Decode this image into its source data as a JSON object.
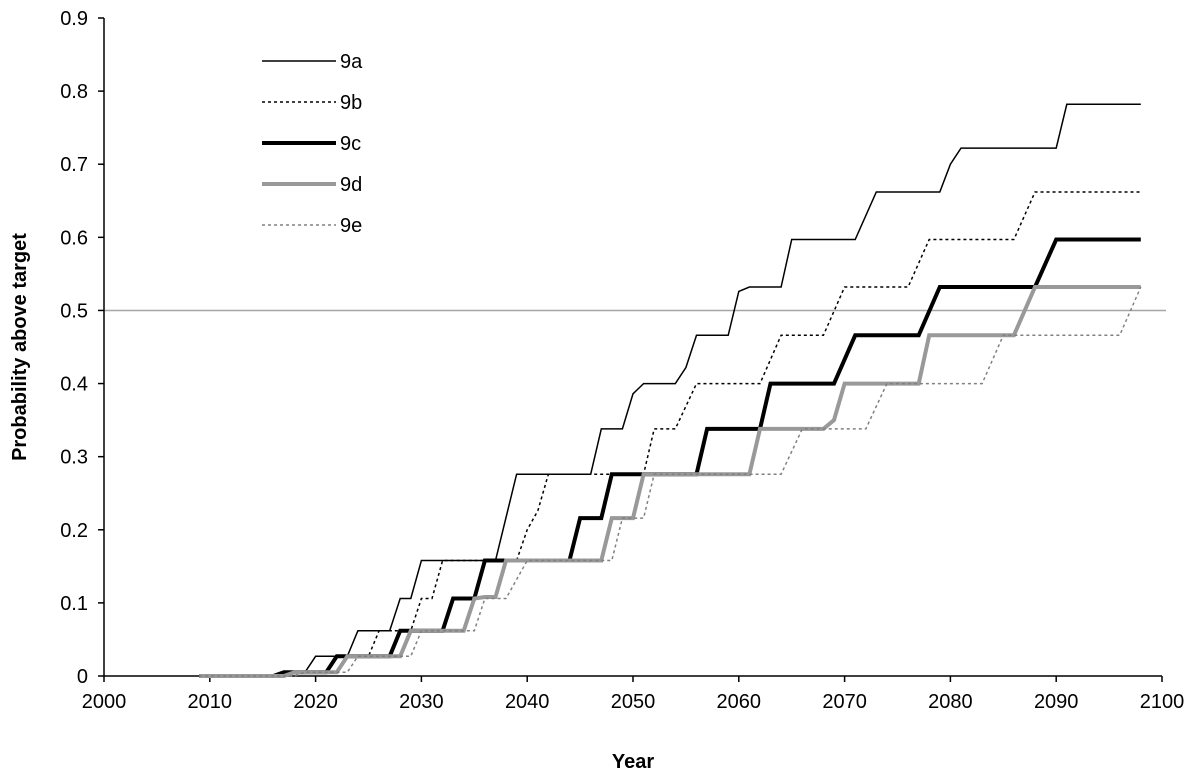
{
  "chart_data": {
    "type": "line",
    "title": "",
    "xlabel": "Year",
    "ylabel": "Probability above target",
    "xlim": [
      2000,
      2100
    ],
    "ylim": [
      0,
      0.9
    ],
    "xticks": [
      2000,
      2010,
      2020,
      2030,
      2040,
      2050,
      2060,
      2070,
      2080,
      2090,
      2100
    ],
    "yticks": [
      0,
      0.1,
      0.2,
      0.3,
      0.4,
      0.5,
      0.6,
      0.7,
      0.8,
      0.9
    ],
    "ytick_labels": [
      "0",
      "0.1",
      "0.2",
      "0.3",
      "0.4",
      "0.5",
      "0.6",
      "0.7",
      "0.8",
      "0.9"
    ],
    "xtick_labels": [
      "2000",
      "2010",
      "2020",
      "2030",
      "2040",
      "2050",
      "2060",
      "2070",
      "2080",
      "2090",
      "2100"
    ],
    "grid": false,
    "legend_position": "top-left",
    "reference_lines": [
      {
        "axis": "y",
        "value": 0.5,
        "color": "#a6a6a6"
      }
    ],
    "series": [
      {
        "name": "9a",
        "color": "#000000",
        "style": "solid-thin",
        "points": [
          [
            2009,
            0
          ],
          [
            2016,
            0
          ],
          [
            2017,
            0.005
          ],
          [
            2019,
            0.005
          ],
          [
            2020,
            0.027
          ],
          [
            2023,
            0.027
          ],
          [
            2024,
            0.062
          ],
          [
            2027,
            0.062
          ],
          [
            2028,
            0.106
          ],
          [
            2029,
            0.106
          ],
          [
            2030,
            0.158
          ],
          [
            2037,
            0.158
          ],
          [
            2039,
            0.276
          ],
          [
            2046,
            0.276
          ],
          [
            2047,
            0.338
          ],
          [
            2049,
            0.338
          ],
          [
            2050,
            0.386
          ],
          [
            2051,
            0.4
          ],
          [
            2054,
            0.4
          ],
          [
            2055,
            0.422
          ],
          [
            2056,
            0.466
          ],
          [
            2059,
            0.466
          ],
          [
            2060,
            0.526
          ],
          [
            2061,
            0.532
          ],
          [
            2064,
            0.532
          ],
          [
            2065,
            0.597
          ],
          [
            2071,
            0.597
          ],
          [
            2073,
            0.662
          ],
          [
            2079,
            0.662
          ],
          [
            2080,
            0.7
          ],
          [
            2081,
            0.722
          ],
          [
            2090,
            0.722
          ],
          [
            2091,
            0.782
          ],
          [
            2098,
            0.782
          ]
        ]
      },
      {
        "name": "9b",
        "color": "#000000",
        "style": "dotted-thin",
        "points": [
          [
            2009,
            0
          ],
          [
            2017,
            0
          ],
          [
            2018,
            0.005
          ],
          [
            2021,
            0.005
          ],
          [
            2022,
            0.027
          ],
          [
            2025,
            0.027
          ],
          [
            2026,
            0.062
          ],
          [
            2029,
            0.062
          ],
          [
            2030,
            0.106
          ],
          [
            2031,
            0.106
          ],
          [
            2032,
            0.158
          ],
          [
            2039,
            0.158
          ],
          [
            2040,
            0.2
          ],
          [
            2041,
            0.226
          ],
          [
            2042,
            0.276
          ],
          [
            2051,
            0.276
          ],
          [
            2052,
            0.338
          ],
          [
            2054,
            0.338
          ],
          [
            2056,
            0.4
          ],
          [
            2062,
            0.4
          ],
          [
            2064,
            0.466
          ],
          [
            2068,
            0.466
          ],
          [
            2070,
            0.532
          ],
          [
            2076,
            0.532
          ],
          [
            2078,
            0.597
          ],
          [
            2086,
            0.597
          ],
          [
            2088,
            0.662
          ],
          [
            2098,
            0.662
          ]
        ]
      },
      {
        "name": "9c",
        "color": "#000000",
        "style": "solid-thick",
        "points": [
          [
            2009,
            0
          ],
          [
            2016,
            0
          ],
          [
            2017,
            0.005
          ],
          [
            2021,
            0.005
          ],
          [
            2022,
            0.027
          ],
          [
            2027,
            0.027
          ],
          [
            2028,
            0.062
          ],
          [
            2032,
            0.062
          ],
          [
            2033,
            0.106
          ],
          [
            2035,
            0.106
          ],
          [
            2036,
            0.158
          ],
          [
            2044,
            0.158
          ],
          [
            2045,
            0.216
          ],
          [
            2047,
            0.216
          ],
          [
            2048,
            0.276
          ],
          [
            2056,
            0.276
          ],
          [
            2057,
            0.338
          ],
          [
            2062,
            0.338
          ],
          [
            2063,
            0.4
          ],
          [
            2069,
            0.4
          ],
          [
            2071,
            0.466
          ],
          [
            2077,
            0.466
          ],
          [
            2079,
            0.532
          ],
          [
            2088,
            0.532
          ],
          [
            2090,
            0.597
          ],
          [
            2098,
            0.597
          ]
        ]
      },
      {
        "name": "9d",
        "color": "#999999",
        "style": "solid-thick",
        "points": [
          [
            2009,
            0
          ],
          [
            2017,
            0
          ],
          [
            2018,
            0.005
          ],
          [
            2022,
            0.005
          ],
          [
            2023,
            0.027
          ],
          [
            2028,
            0.027
          ],
          [
            2029,
            0.062
          ],
          [
            2034,
            0.062
          ],
          [
            2035,
            0.106
          ],
          [
            2036,
            0.108
          ],
          [
            2037,
            0.108
          ],
          [
            2038,
            0.158
          ],
          [
            2047,
            0.158
          ],
          [
            2048,
            0.216
          ],
          [
            2050,
            0.216
          ],
          [
            2051,
            0.276
          ],
          [
            2061,
            0.276
          ],
          [
            2062,
            0.338
          ],
          [
            2068,
            0.338
          ],
          [
            2069,
            0.35
          ],
          [
            2070,
            0.4
          ],
          [
            2077,
            0.4
          ],
          [
            2078,
            0.466
          ],
          [
            2086,
            0.466
          ],
          [
            2088,
            0.532
          ],
          [
            2098,
            0.532
          ]
        ]
      },
      {
        "name": "9e",
        "color": "#808080",
        "style": "dotted-thin",
        "points": [
          [
            2009,
            0
          ],
          [
            2018,
            0
          ],
          [
            2019,
            0.005
          ],
          [
            2023,
            0.005
          ],
          [
            2024,
            0.027
          ],
          [
            2029,
            0.027
          ],
          [
            2030,
            0.062
          ],
          [
            2035,
            0.062
          ],
          [
            2036,
            0.106
          ],
          [
            2038,
            0.106
          ],
          [
            2040,
            0.158
          ],
          [
            2048,
            0.158
          ],
          [
            2049,
            0.216
          ],
          [
            2051,
            0.216
          ],
          [
            2052,
            0.276
          ],
          [
            2064,
            0.276
          ],
          [
            2066,
            0.338
          ],
          [
            2072,
            0.338
          ],
          [
            2074,
            0.4
          ],
          [
            2083,
            0.4
          ],
          [
            2085,
            0.466
          ],
          [
            2096,
            0.466
          ],
          [
            2098,
            0.532
          ]
        ]
      }
    ]
  }
}
